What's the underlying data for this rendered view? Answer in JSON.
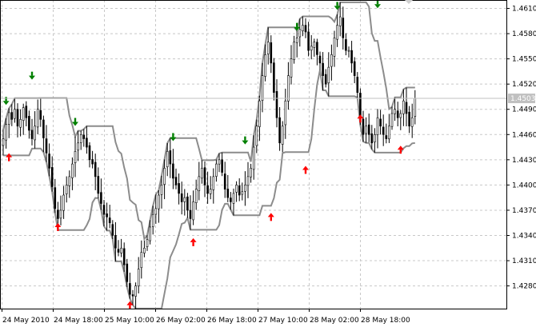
{
  "chart_data": {
    "type": "candlestick",
    "symbol_hint": "",
    "x_tick_labels": [
      "24 May 2010",
      "24 May 18:00",
      "25 May 10:00",
      "26 May 02:00",
      "26 May 18:00",
      "27 May 10:00",
      "28 May 02:00",
      "28 May 18:00"
    ],
    "y_tick_labels": [
      "1.4610",
      "1.4580",
      "1.4550",
      "1.4520",
      "1.4490",
      "1.4460",
      "1.4430",
      "1.4400",
      "1.4370",
      "1.4340",
      "1.4310",
      "1.4280"
    ],
    "ylim": [
      1.4253,
      1.462
    ],
    "grid": true,
    "current_price": "1.4503",
    "colors": {
      "candle": "#000000",
      "channel": "#8c8c8c",
      "grid": "#c8c8c8",
      "buy_arrow": "#ff0000",
      "sell_arrow": "#008000",
      "price_tag_bg": "#c0c0c0",
      "current_price_line": "#c0c0c0"
    },
    "close": [
      1.4455,
      1.4472,
      1.4486,
      1.4478,
      1.449,
      1.447,
      1.4478,
      1.4492,
      1.448,
      1.4465,
      1.4455,
      1.447,
      1.449,
      1.4478,
      1.4456,
      1.4438,
      1.442,
      1.4398,
      1.4372,
      1.436,
      1.437,
      1.4388,
      1.44,
      1.441,
      1.4425,
      1.444,
      1.445,
      1.446,
      1.4455,
      1.4445,
      1.443,
      1.4425,
      1.441,
      1.439,
      1.4378,
      1.4365,
      1.4362,
      1.4355,
      1.434,
      1.4325,
      1.432,
      1.4325,
      1.4305,
      1.4285,
      1.427,
      1.4268,
      1.428,
      1.43,
      1.432,
      1.4325,
      1.4335,
      1.435,
      1.4365,
      1.4372,
      1.4388,
      1.44,
      1.442,
      1.444,
      1.4425,
      1.4408,
      1.44,
      1.439,
      1.438,
      1.4385,
      1.437,
      1.436,
      1.438,
      1.4395,
      1.441,
      1.442,
      1.44,
      1.439,
      1.4395,
      1.441,
      1.4425,
      1.443,
      1.4415,
      1.4395,
      1.4385,
      1.438,
      1.439,
      1.44,
      1.4388,
      1.4392,
      1.44,
      1.441,
      1.442,
      1.4445,
      1.447,
      1.45,
      1.453,
      1.4555,
      1.457,
      1.4545,
      1.451,
      1.448,
      1.445,
      1.447,
      1.45,
      1.453,
      1.455,
      1.457,
      1.4575,
      1.4585,
      1.459,
      1.4582,
      1.456,
      1.4565,
      1.457,
      1.4555,
      1.4545,
      1.453,
      1.452,
      1.454,
      1.4555,
      1.4575,
      1.459,
      1.46,
      1.4575,
      1.456,
      1.456,
      1.4545,
      1.453,
      1.451,
      1.448,
      1.446,
      1.447,
      1.446,
      1.445,
      1.446,
      1.448,
      1.447,
      1.446,
      1.4455,
      1.447,
      1.4485,
      1.449,
      1.448,
      1.4485,
      1.45,
      1.4485,
      1.447,
      1.448,
      1.4503
    ],
    "channel_upper_bound_hint": "derived",
    "buy_arrows": [
      {
        "i": 2,
        "price": 1.4433
      },
      {
        "i": 19,
        "price": 1.435
      },
      {
        "i": 44,
        "price": 1.4257
      },
      {
        "i": 66,
        "price": 1.4332
      },
      {
        "i": 93,
        "price": 1.4362
      },
      {
        "i": 105,
        "price": 1.4418
      },
      {
        "i": 124,
        "price": 1.4479
      },
      {
        "i": 138,
        "price": 1.4442
      }
    ],
    "sell_arrows": [
      {
        "i": 1,
        "price": 1.45
      },
      {
        "i": 10,
        "price": 1.453
      },
      {
        "i": 25,
        "price": 1.4475
      },
      {
        "i": 59,
        "price": 1.4457
      },
      {
        "i": 84,
        "price": 1.4453
      },
      {
        "i": 102,
        "price": 1.4588
      },
      {
        "i": 116,
        "price": 1.4613
      },
      {
        "i": 130,
        "price": 1.4615
      }
    ]
  }
}
